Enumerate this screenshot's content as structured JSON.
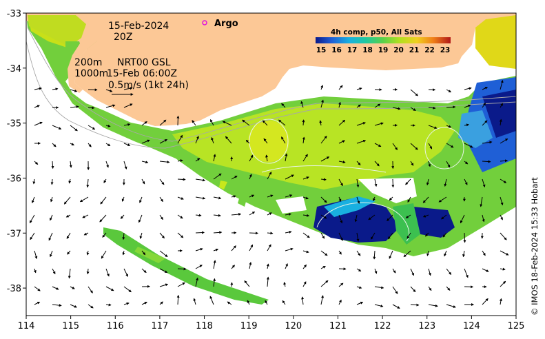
{
  "annotations": {
    "date": "15-Feb-2024",
    "time": "20Z",
    "contour_200": "200m",
    "contour_1000": "1000m",
    "current_source": "NRT00 GSL",
    "current_time": "15-Feb 06:00Z",
    "scale_arrow": "0.5m/s (1kt 24h)",
    "argo": "Argo"
  },
  "legend": {
    "colorbar_title": "4h comp, p50, All Sats",
    "ticks": [
      "15",
      "16",
      "17",
      "18",
      "19",
      "20",
      "21",
      "22",
      "23"
    ],
    "colors": [
      "#0a1a8a",
      "#1f5fd6",
      "#19b0e0",
      "#20c8a0",
      "#5ad04a",
      "#b0e020",
      "#f0d020",
      "#f08018",
      "#b01818"
    ]
  },
  "axes": {
    "x_ticks": [
      "114",
      "115",
      "116",
      "117",
      "118",
      "119",
      "120",
      "121",
      "122",
      "123",
      "124",
      "125"
    ],
    "y_ticks": [
      "-33",
      "-34",
      "-35",
      "-36",
      "-37",
      "-38"
    ],
    "xlim": [
      114,
      125
    ],
    "ylim": [
      -38.5,
      -33
    ]
  },
  "credit": "© IMOS 18-Feb-2024 15:33 Hobart",
  "colors": {
    "land": "#fcc896",
    "ocean": "#ffffff",
    "sst_green": "#6ccc3c",
    "sst_yellow": "#c8e81c",
    "sst_cold": "#0a1a8a"
  }
}
